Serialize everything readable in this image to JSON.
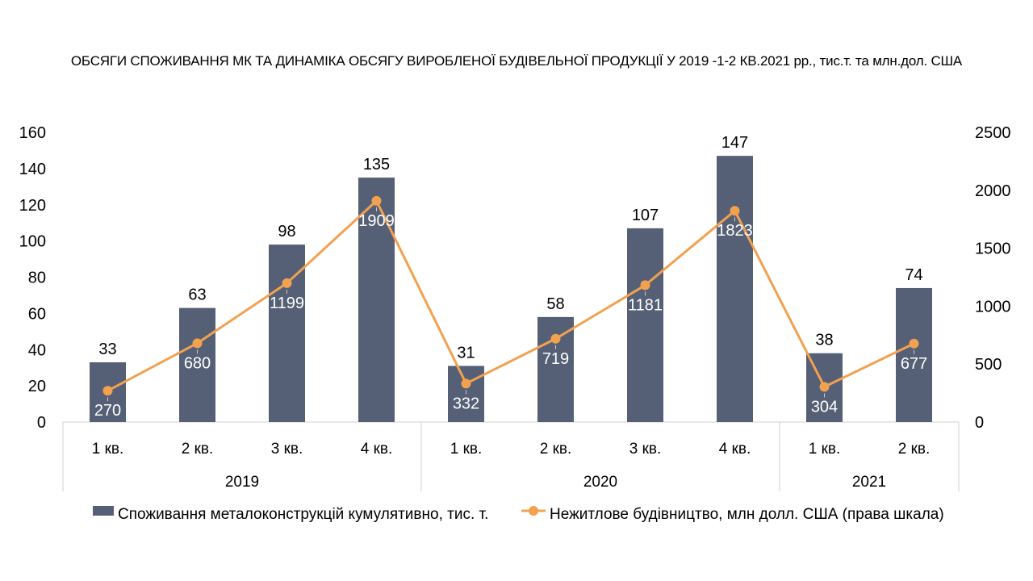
{
  "chart_data": {
    "type": "bar",
    "title": "ОБСЯГИ СПОЖИВАННЯ МК ТА ДИНАМІКА ОБСЯГУ ВИРОБЛЕНОЇ БУДІВЕЛЬНОЇ ПРОДУКЦІЇ У 2019 -1-2 КВ.2021 рр., тис.т. та млн.дол. США",
    "categories": [
      "1 кв.",
      "2 кв.",
      "3 кв.",
      "4 кв.",
      "1 кв.",
      "2 кв.",
      "3 кв.",
      "4 кв.",
      "1 кв.",
      "2 кв."
    ],
    "groups": [
      {
        "label": "2019",
        "count": 4
      },
      {
        "label": "2020",
        "count": 4
      },
      {
        "label": "2021",
        "count": 2
      }
    ],
    "series": [
      {
        "name": "Споживання металоконструкцій кумулятивно, тис. т.",
        "type": "bar",
        "axis": "left",
        "values": [
          33,
          63,
          98,
          135,
          31,
          58,
          107,
          147,
          38,
          74
        ]
      },
      {
        "name": "Нежитлове будівництво, млн долл. США (права шкала)",
        "type": "line",
        "axis": "right",
        "values": [
          270,
          680,
          1199,
          1909,
          332,
          719,
          1181,
          1823,
          304,
          677
        ]
      }
    ],
    "left_axis": {
      "min": 0,
      "max": 160,
      "ticks": [
        0,
        20,
        40,
        60,
        80,
        100,
        120,
        140,
        160
      ]
    },
    "right_axis": {
      "min": 0,
      "max": 2500,
      "ticks": [
        0,
        500,
        1000,
        1500,
        2000,
        2500
      ]
    },
    "grid": false,
    "legend_position": "bottom",
    "colors": {
      "bar": "#556076",
      "line": "#F2A150",
      "axis": "#d0d0d0"
    }
  }
}
